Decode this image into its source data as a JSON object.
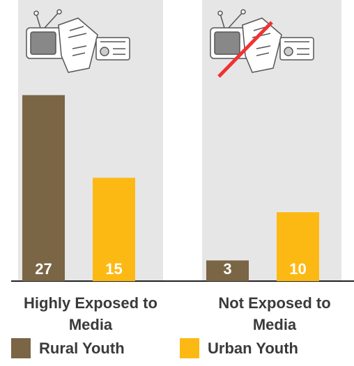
{
  "chart_data": {
    "type": "bar",
    "categories": [
      "Highly Exposed to Media",
      "Not Exposed to Media"
    ],
    "series": [
      {
        "name": "Rural Youth",
        "color": "#7a6545",
        "values": [
          27,
          3
        ]
      },
      {
        "name": "Urban Youth",
        "color": "#fdb913",
        "values": [
          15,
          10
        ]
      }
    ]
  }
}
